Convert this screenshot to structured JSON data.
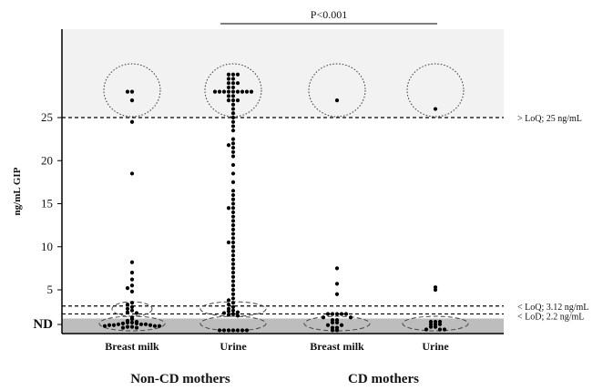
{
  "chart_data": {
    "type": "scatter",
    "ylabel": "ng/mL GIP",
    "y_ticks": [
      "ND",
      "5",
      "10",
      "15",
      "20",
      "25"
    ],
    "categories": [
      "Breast milk",
      "Urine",
      "Breast milk",
      "Urine"
    ],
    "groups": [
      "Non-CD mothers",
      "CD mothers"
    ],
    "ylim": [
      0,
      33
    ],
    "p_value": "P<0.001",
    "shaded_regions": [
      "below LoD (ND)",
      "above LoQ 25"
    ],
    "thresholds": [
      {
        "value": 25,
        "label": "> LoQ; 25 ng/mL"
      },
      {
        "value": 3.12,
        "label": "< LoQ; 3.12 ng/mL"
      },
      {
        "value": 2.2,
        "label": "< LoD; 2.2 ng/mL"
      }
    ],
    "series": [
      {
        "category": "Breast milk",
        "group": "Non-CD mothers",
        "values": [
          28,
          28,
          27,
          24.5,
          18.5,
          8.2,
          7.0,
          6.2,
          5.5,
          5.2,
          4.8,
          3.5,
          3.3,
          3.0,
          2.8,
          2.6,
          2.4,
          2.3,
          1.8,
          1.6,
          1.4,
          1.3,
          1.2,
          1.2,
          1.1,
          1.1,
          1.0,
          1.0,
          1.0,
          0.9,
          0.9,
          0.9,
          0.8,
          0.8,
          0.8,
          0.7,
          0.7,
          0.6,
          0.6
        ]
      },
      {
        "category": "Urine",
        "group": "Non-CD mothers",
        "values": [
          30,
          30,
          30,
          29.5,
          29.5,
          29,
          29,
          29,
          28.5,
          28.5,
          28,
          28,
          28,
          28,
          28,
          28,
          28,
          28,
          28,
          27.5,
          27.5,
          27,
          27,
          27,
          26.5,
          26,
          25.5,
          25,
          24.5,
          24,
          23.5,
          22.5,
          22,
          21.8,
          21.5,
          21,
          20.5,
          19.5,
          18.5,
          17.5,
          16.5,
          16,
          15.5,
          15,
          14.5,
          14.5,
          14,
          13.5,
          13,
          12.5,
          12,
          11.5,
          11,
          10.5,
          10.5,
          10,
          9.5,
          9,
          8.5,
          8,
          7.5,
          7,
          6.5,
          6,
          5.5,
          5,
          4.5,
          4,
          3.8,
          3.5,
          3.3,
          3.0,
          2.8,
          2.6,
          2.5,
          2.4,
          2.3,
          2.2,
          2.1,
          2.0,
          0.3,
          0.3,
          0.3,
          0.3,
          0.3,
          0.3,
          0.3
        ]
      },
      {
        "category": "Breast milk",
        "group": "CD mothers",
        "values": [
          27,
          7.5,
          5.7,
          4.5,
          2.2,
          2.2,
          2.2,
          2.2,
          2.2,
          1.8,
          1.8,
          1.5,
          1.5,
          1.2,
          1.2,
          0.9,
          0.9,
          0.6,
          0.6,
          0.3,
          0.3
        ]
      },
      {
        "category": "Urine",
        "group": "CD mothers",
        "values": [
          26,
          5.3,
          5.0,
          1.3,
          1.3,
          1.3,
          1.0,
          1.0,
          1.0,
          0.7,
          0.7,
          0.4,
          0.4,
          0.4
        ]
      }
    ]
  }
}
